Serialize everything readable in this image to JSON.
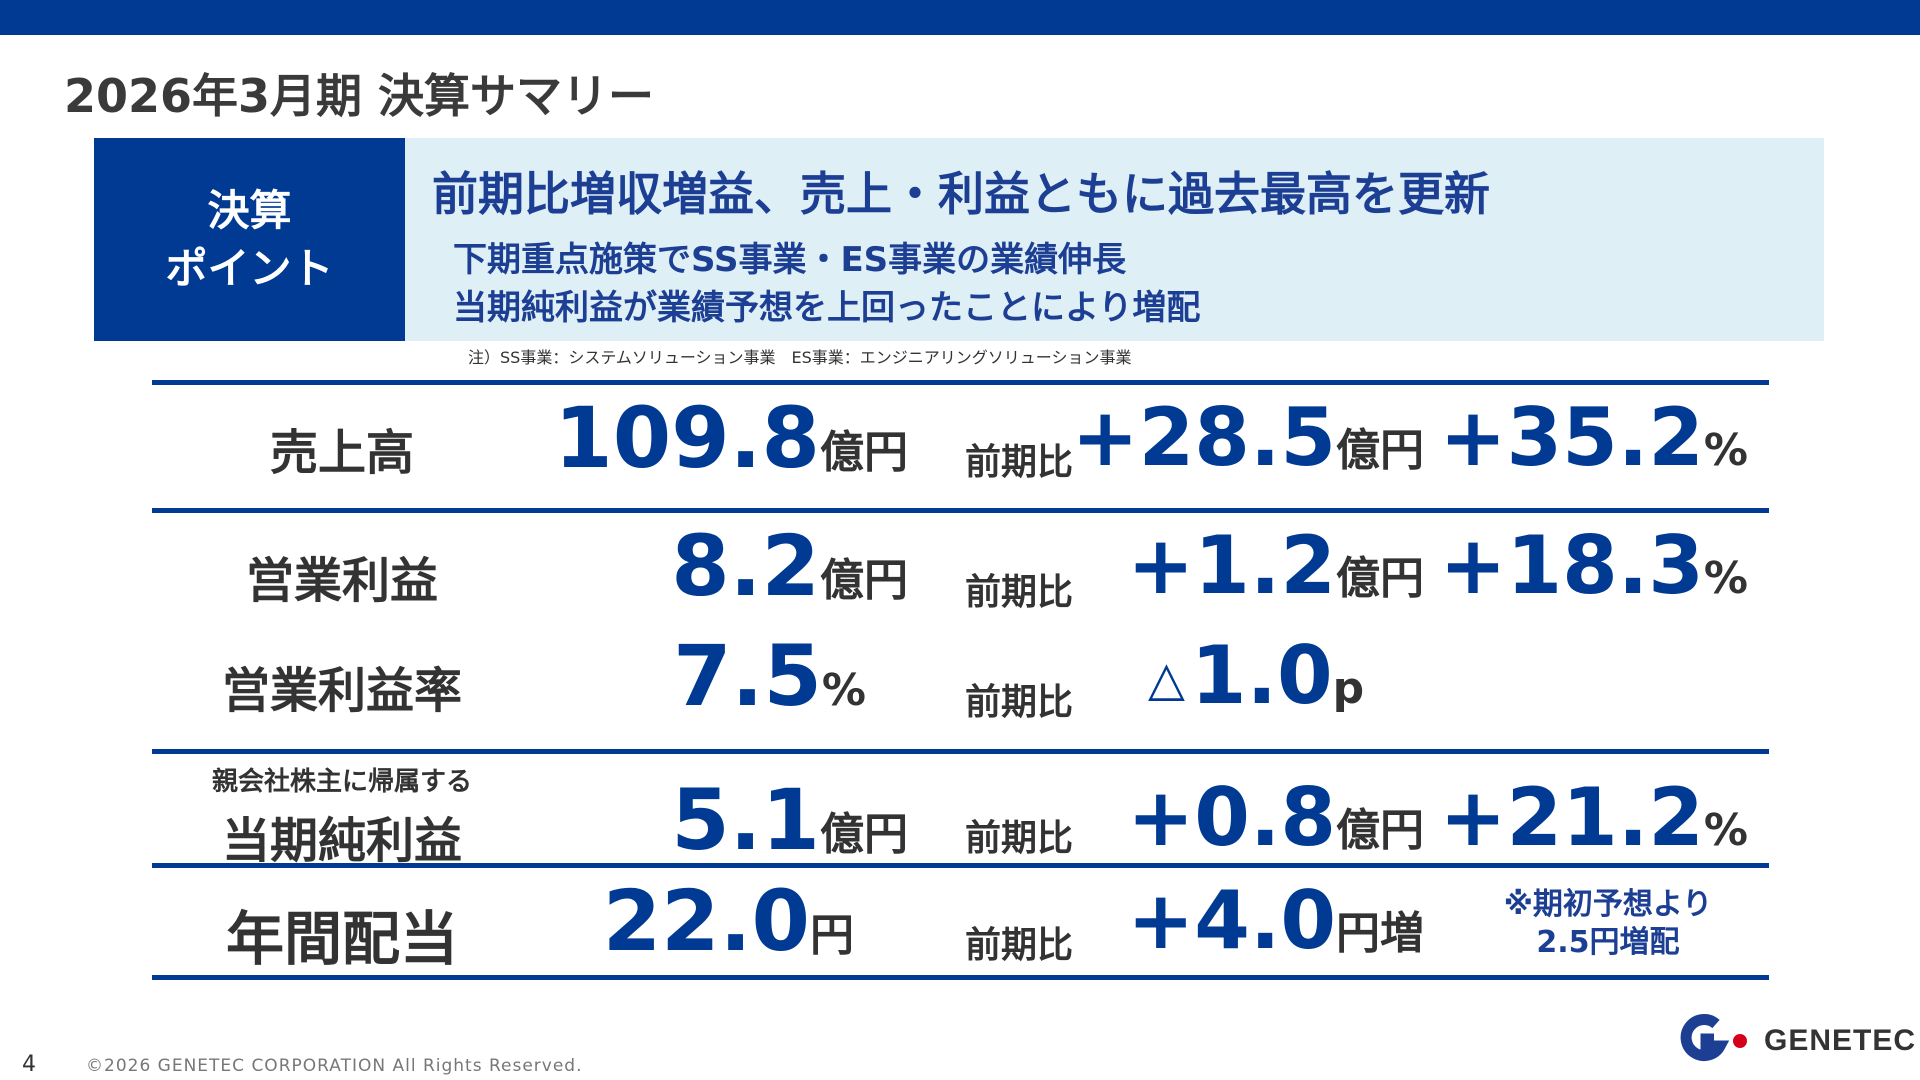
{
  "page": {
    "title": "2026年3月期 決算サマリー",
    "number": "4",
    "copyright": "©2026 GENETEC CORPORATION All Rights Reserved."
  },
  "points": {
    "label_line1": "決算",
    "label_line2": "ポイント",
    "headline": "前期比増収増益、売上・利益ともに過去最高を更新",
    "sub1": "下期重点施策でSS事業・ES事業の業績伸長",
    "sub2": "当期純利益が業績予想を上回ったことにより増配",
    "note": "注）SS事業：システムソリューション事業　ES事業：エンジニアリングソリューション事業"
  },
  "metrics": {
    "yoy_label": "前期比",
    "sales": {
      "label": "売上高",
      "value": "109.8",
      "unit": "億円",
      "delta": "+28.5",
      "delta_unit": "億円",
      "pct": "+35.2",
      "pct_unit": "%"
    },
    "op_profit": {
      "label": "営業利益",
      "value": "8.2",
      "unit": "億円",
      "delta": "+1.2",
      "delta_unit": "億円",
      "pct": "+18.3",
      "pct_unit": "%"
    },
    "op_margin": {
      "label": "営業利益率",
      "value": "7.5",
      "unit": "%",
      "delta_symbol": "△",
      "delta": "1.0",
      "delta_unit": "p"
    },
    "net_income": {
      "small_label": "親会社株主に帰属する",
      "label": "当期純利益",
      "value": "5.1",
      "unit": "億円",
      "delta": "+0.8",
      "delta_unit": "億円",
      "pct": "+21.2",
      "pct_unit": "%"
    },
    "dividend": {
      "label": "年間配当",
      "value": "22.0",
      "unit": "円",
      "delta": "+4.0",
      "delta_unit": "円増",
      "note1": "※期初予想より",
      "note2": "2.5円増配"
    }
  },
  "logo": {
    "text": "GENETEC",
    "icon": "genetec-logo-icon",
    "colors": {
      "blue": "#1c3f94",
      "red": "#d7001b"
    }
  },
  "colors": {
    "accent": "#003a93",
    "points_bg": "#dfeff6"
  }
}
